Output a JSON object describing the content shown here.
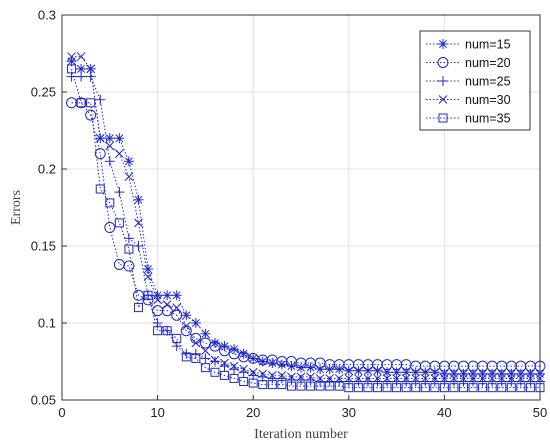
{
  "chart_data": {
    "type": "line",
    "xlabel": "Iteration number",
    "ylabel": "Errors",
    "xlim": [
      0,
      50
    ],
    "ylim": [
      0.05,
      0.3
    ],
    "xticks": [
      0,
      10,
      20,
      30,
      40,
      50
    ],
    "yticks": [
      0.05,
      0.1,
      0.15,
      0.2,
      0.25,
      0.3
    ],
    "grid": true,
    "legend_position": "top-right",
    "line_color": "#1f28c8",
    "line_style": "dotted",
    "x": [
      1,
      2,
      3,
      4,
      5,
      6,
      7,
      8,
      9,
      10,
      11,
      12,
      13,
      14,
      15,
      16,
      17,
      18,
      19,
      20,
      21,
      22,
      23,
      24,
      25,
      26,
      27,
      28,
      29,
      30,
      31,
      32,
      33,
      34,
      35,
      36,
      37,
      38,
      39,
      40,
      41,
      42,
      43,
      44,
      45,
      46,
      47,
      48,
      49,
      50
    ],
    "series": [
      {
        "name": "num=15",
        "marker": "asterisk",
        "values": [
          0.27,
          0.265,
          0.265,
          0.22,
          0.22,
          0.22,
          0.205,
          0.18,
          0.135,
          0.118,
          0.118,
          0.118,
          0.105,
          0.1,
          0.093,
          0.087,
          0.085,
          0.083,
          0.08,
          0.077,
          0.075,
          0.074,
          0.073,
          0.072,
          0.071,
          0.071,
          0.07,
          0.07,
          0.07,
          0.069,
          0.069,
          0.069,
          0.069,
          0.068,
          0.068,
          0.068,
          0.068,
          0.068,
          0.068,
          0.067,
          0.067,
          0.067,
          0.067,
          0.067,
          0.067,
          0.067,
          0.067,
          0.067,
          0.067,
          0.067
        ]
      },
      {
        "name": "num=20",
        "marker": "circle",
        "values": [
          0.243,
          0.243,
          0.235,
          0.21,
          0.162,
          0.138,
          0.137,
          0.118,
          0.115,
          0.108,
          0.108,
          0.105,
          0.095,
          0.09,
          0.087,
          0.085,
          0.082,
          0.08,
          0.078,
          0.077,
          0.076,
          0.076,
          0.075,
          0.075,
          0.074,
          0.074,
          0.074,
          0.073,
          0.073,
          0.073,
          0.073,
          0.073,
          0.073,
          0.073,
          0.073,
          0.073,
          0.072,
          0.072,
          0.072,
          0.072,
          0.072,
          0.072,
          0.072,
          0.072,
          0.072,
          0.072,
          0.072,
          0.072,
          0.072,
          0.072
        ]
      },
      {
        "name": "num=25",
        "marker": "plus",
        "values": [
          0.26,
          0.26,
          0.26,
          0.245,
          0.205,
          0.185,
          0.155,
          0.15,
          0.118,
          0.1,
          0.095,
          0.085,
          0.08,
          0.08,
          0.077,
          0.075,
          0.072,
          0.07,
          0.068,
          0.066,
          0.065,
          0.064,
          0.064,
          0.063,
          0.063,
          0.063,
          0.062,
          0.062,
          0.062,
          0.062,
          0.062,
          0.062,
          0.062,
          0.062,
          0.062,
          0.062,
          0.062,
          0.062,
          0.062,
          0.062,
          0.062,
          0.062,
          0.062,
          0.062,
          0.062,
          0.062,
          0.062,
          0.062,
          0.062,
          0.062
        ]
      },
      {
        "name": "num=30",
        "marker": "x",
        "values": [
          0.273,
          0.273,
          0.265,
          0.22,
          0.215,
          0.21,
          0.195,
          0.165,
          0.13,
          0.115,
          0.112,
          0.11,
          0.098,
          0.087,
          0.082,
          0.076,
          0.074,
          0.072,
          0.07,
          0.068,
          0.067,
          0.066,
          0.066,
          0.065,
          0.065,
          0.065,
          0.064,
          0.064,
          0.064,
          0.064,
          0.064,
          0.064,
          0.064,
          0.064,
          0.064,
          0.064,
          0.064,
          0.064,
          0.064,
          0.064,
          0.064,
          0.064,
          0.064,
          0.064,
          0.064,
          0.064,
          0.064,
          0.064,
          0.064,
          0.064
        ]
      },
      {
        "name": "num=35",
        "marker": "square",
        "values": [
          0.265,
          0.243,
          0.243,
          0.187,
          0.178,
          0.165,
          0.148,
          0.11,
          0.118,
          0.095,
          0.095,
          0.09,
          0.078,
          0.077,
          0.071,
          0.068,
          0.066,
          0.064,
          0.062,
          0.061,
          0.06,
          0.06,
          0.06,
          0.059,
          0.059,
          0.059,
          0.059,
          0.059,
          0.059,
          0.058,
          0.058,
          0.058,
          0.058,
          0.058,
          0.058,
          0.058,
          0.058,
          0.058,
          0.058,
          0.058,
          0.058,
          0.058,
          0.058,
          0.058,
          0.058,
          0.058,
          0.058,
          0.058,
          0.058,
          0.058
        ]
      }
    ]
  }
}
